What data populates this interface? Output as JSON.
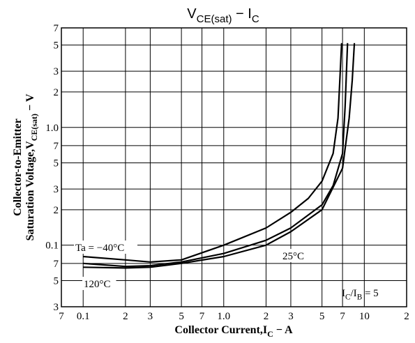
{
  "chart_data": {
    "type": "line",
    "title": [
      {
        "text": "V"
      },
      {
        "text": "CE(sat)",
        "sub": true
      },
      {
        "text": " − I"
      },
      {
        "text": "C",
        "sub": true
      }
    ],
    "x_label": [
      {
        "text": "Collector Current,I"
      },
      {
        "text": "C",
        "sub": true
      },
      {
        "text": " − A"
      }
    ],
    "y_label": [
      [
        {
          "text": "Collector-to-Emitter"
        }
      ],
      [
        {
          "text": "Saturation Voltage,V"
        },
        {
          "text": "CE(sat)",
          "sub": true
        },
        {
          "text": " − V"
        }
      ]
    ],
    "annotation": [
      {
        "text": "I"
      },
      {
        "text": "C",
        "sub": true
      },
      {
        "text": "/I"
      },
      {
        "text": "B",
        "sub": true
      },
      {
        "text": " = 5"
      }
    ],
    "xlog": true,
    "ylog": true,
    "grid": true,
    "xlim": [
      0.07,
      20
    ],
    "ylim": [
      0.03,
      7
    ],
    "xticks": [
      {
        "value": 0.07,
        "label": "7"
      },
      0.1,
      {
        "value": 0.2,
        "label": "2"
      },
      {
        "value": 0.3,
        "label": "3"
      },
      {
        "value": 0.5,
        "label": "5"
      },
      {
        "value": 0.7,
        "label": "7"
      },
      {
        "value": 1,
        "label": "1.0"
      },
      2,
      3,
      5,
      7,
      10,
      {
        "value": 20,
        "label": "2"
      }
    ],
    "yticks": [
      {
        "value": 0.03,
        "label": "3"
      },
      {
        "value": 0.05,
        "label": "5"
      },
      {
        "value": 0.07,
        "label": "7"
      },
      0.1,
      {
        "value": 0.2,
        "label": "2"
      },
      {
        "value": 0.3,
        "label": "3"
      },
      {
        "value": 0.5,
        "label": "5"
      },
      {
        "value": 0.7,
        "label": "7"
      },
      {
        "value": 1,
        "label": "1.0"
      },
      2,
      3,
      5,
      7
    ],
    "series": [
      {
        "name": "Ta = −40°C",
        "color": "#000000",
        "x": [
          0.1,
          0.2,
          0.3,
          0.5,
          1,
          2,
          3,
          4,
          5,
          6,
          6.5,
          6.9
        ],
        "values": [
          0.08,
          0.075,
          0.072,
          0.075,
          0.1,
          0.14,
          0.19,
          0.25,
          0.35,
          0.6,
          1.2,
          5.2
        ]
      },
      {
        "name": "25°C",
        "color": "#000000",
        "x": [
          0.1,
          0.2,
          0.3,
          0.5,
          1,
          2,
          3,
          5,
          6,
          7,
          7.3,
          7.6
        ],
        "values": [
          0.07,
          0.066,
          0.067,
          0.072,
          0.085,
          0.11,
          0.14,
          0.22,
          0.32,
          0.6,
          1.5,
          5.2
        ]
      },
      {
        "name": "120°C",
        "color": "#000000",
        "x": [
          0.1,
          0.2,
          0.3,
          0.5,
          1,
          2,
          3,
          5,
          7,
          7.8,
          8.2,
          8.5
        ],
        "values": [
          0.065,
          0.064,
          0.065,
          0.07,
          0.08,
          0.1,
          0.13,
          0.2,
          0.45,
          1.2,
          2.5,
          5.2
        ]
      }
    ]
  }
}
